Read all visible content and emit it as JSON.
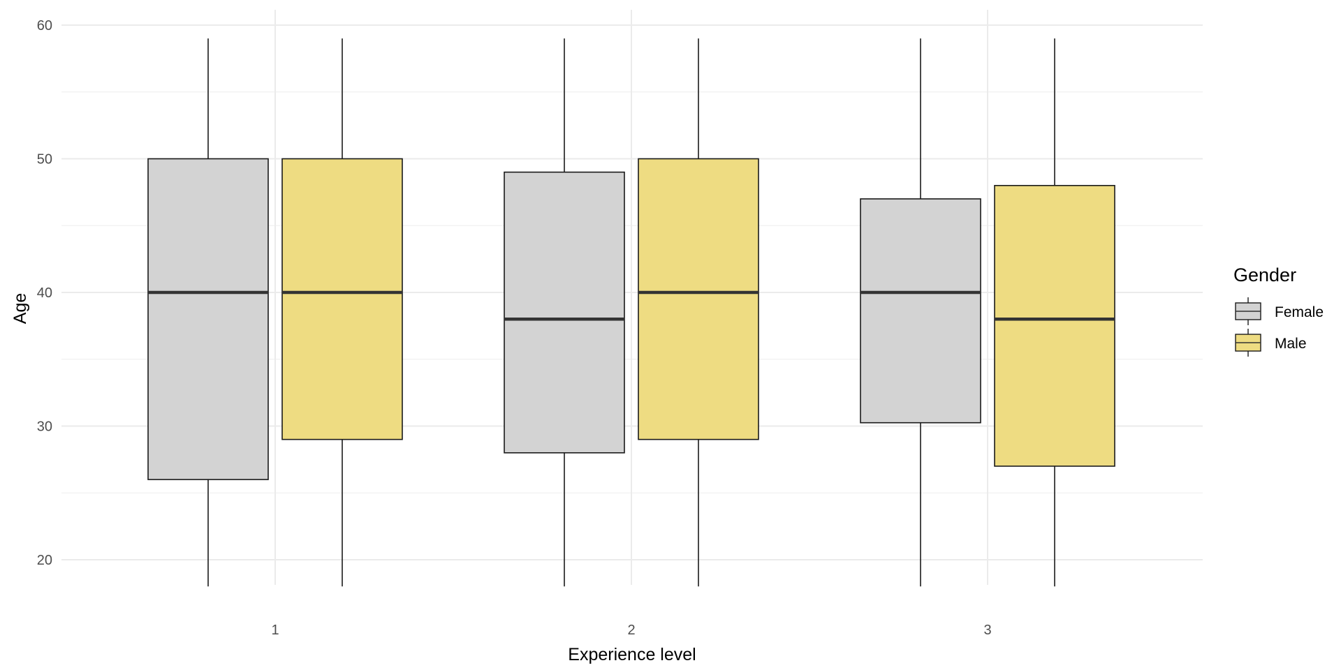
{
  "chart_data": {
    "type": "box",
    "xlabel": "Experience level",
    "ylabel": "Age",
    "categories": [
      "1",
      "2",
      "3"
    ],
    "ylim": [
      16,
      62
    ],
    "y_ticks": [
      20,
      30,
      40,
      50,
      60
    ],
    "grid": true,
    "legend": {
      "title": "Gender",
      "position": "right"
    },
    "series": [
      {
        "name": "Female",
        "color": "#d3d3d3",
        "boxes": [
          {
            "min": 18,
            "q1": 26,
            "median": 40,
            "q3": 50,
            "max": 59
          },
          {
            "min": 18,
            "q1": 28,
            "median": 38,
            "q3": 49,
            "max": 59
          },
          {
            "min": 18,
            "q1": 30.25,
            "median": 40,
            "q3": 47,
            "max": 59
          }
        ]
      },
      {
        "name": "Male",
        "color": "#eedc82",
        "boxes": [
          {
            "min": 18,
            "q1": 29,
            "median": 40,
            "q3": 50,
            "max": 59
          },
          {
            "min": 18,
            "q1": 29,
            "median": 40,
            "q3": 50,
            "max": 59
          },
          {
            "min": 18,
            "q1": 27,
            "median": 38,
            "q3": 48,
            "max": 59
          }
        ]
      }
    ]
  }
}
